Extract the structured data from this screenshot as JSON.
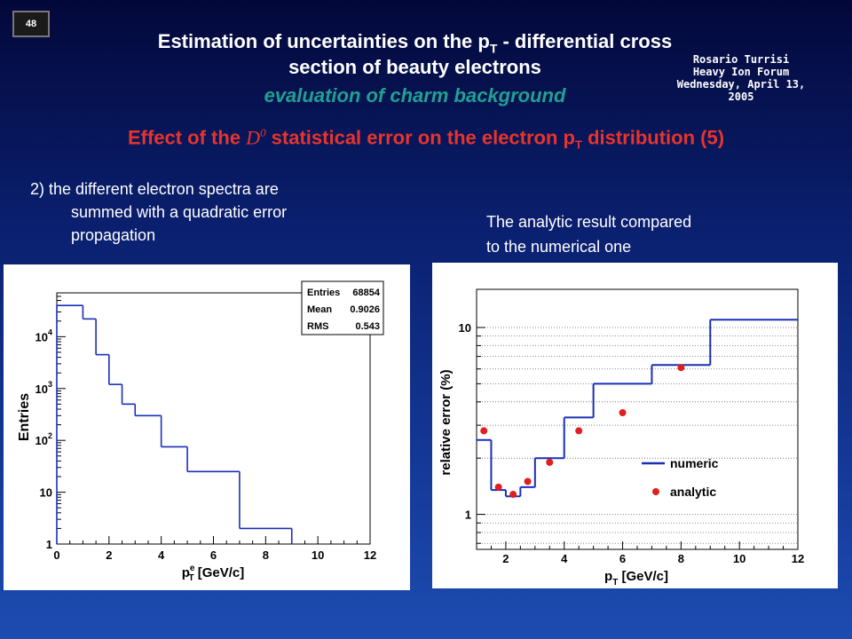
{
  "slide_number": "48",
  "title": {
    "line1_main": "Estimation of uncertainties on the p",
    "line1_sub": "T",
    "line1_rest": " - differential cross",
    "line2": "section of beauty electrons",
    "subtitle": "evaluation of charm background"
  },
  "speaker": {
    "name": "Rosario Turrisi",
    "event": "Heavy Ion Forum",
    "date": "Wednesday, April 13, 2005"
  },
  "heading": {
    "pre": "Effect of the ",
    "symbol": "D",
    "symbol_sup": "0",
    "mid": " statistical error on the electron p",
    "sub": "T",
    "post": " distribution (5)"
  },
  "left_text": {
    "line1": "2) the different electron spectra are",
    "line2": "summed with a quadratic error",
    "line3": "propagation"
  },
  "right_text": {
    "line1": "The analytic result compared",
    "line2": "to the numerical one"
  },
  "chart_data": [
    {
      "type": "histogram",
      "ylabel": "Entries",
      "xlabel_main": "p",
      "xlabel_sup": "e",
      "xlabel_sub": "T",
      "xlabel_unit": " [GeV/c]",
      "xlim": [
        0,
        12
      ],
      "ylim": [
        1,
        70000
      ],
      "log_y": true,
      "x_ticks": [
        "0",
        "2",
        "4",
        "6",
        "8",
        "10",
        "12"
      ],
      "y_ticks": [
        {
          "base": "1",
          "exp": ""
        },
        {
          "base": "10",
          "exp": ""
        },
        {
          "base": "10",
          "exp": "2"
        },
        {
          "base": "10",
          "exp": "3"
        },
        {
          "base": "10",
          "exp": "4"
        }
      ],
      "bins": [
        {
          "lo": 0,
          "hi": 1,
          "value": 40000
        },
        {
          "lo": 1,
          "hi": 1.5,
          "value": 22000
        },
        {
          "lo": 1.5,
          "hi": 2,
          "value": 4500
        },
        {
          "lo": 2,
          "hi": 2.5,
          "value": 1200
        },
        {
          "lo": 2.5,
          "hi": 3,
          "value": 500
        },
        {
          "lo": 3,
          "hi": 4,
          "value": 300
        },
        {
          "lo": 4,
          "hi": 5,
          "value": 75
        },
        {
          "lo": 5,
          "hi": 7,
          "value": 25
        },
        {
          "lo": 7,
          "hi": 9,
          "value": 2
        },
        {
          "lo": 9,
          "hi": 12,
          "value": 0
        }
      ],
      "stats": [
        {
          "label": "Entries",
          "value": "68854"
        },
        {
          "label": "Mean",
          "value": "0.9026"
        },
        {
          "label": "RMS",
          "value": "0.543"
        }
      ],
      "color": "#1a2fb8"
    },
    {
      "type": "line",
      "ylabel": "relative error (%)",
      "xlabel_main": "p",
      "xlabel_sub": "T",
      "xlabel_unit": " [GeV/c]",
      "xlim": [
        1,
        12
      ],
      "ylim": [
        0.65,
        16
      ],
      "log_y": true,
      "grid": true,
      "x_ticks": [
        "2",
        "4",
        "6",
        "8",
        "10",
        "12"
      ],
      "y_ticks": [
        "1",
        "10"
      ],
      "series": [
        {
          "name": "numeric",
          "style": "step",
          "color": "#1a2fb8",
          "steps": [
            {
              "lo": 1,
              "hi": 1.5,
              "value": 2.5
            },
            {
              "lo": 1.5,
              "hi": 2,
              "value": 1.35
            },
            {
              "lo": 2,
              "hi": 2.5,
              "value": 1.25
            },
            {
              "lo": 2.5,
              "hi": 3,
              "value": 1.4
            },
            {
              "lo": 3,
              "hi": 4,
              "value": 2.0
            },
            {
              "lo": 4,
              "hi": 5,
              "value": 3.3
            },
            {
              "lo": 5,
              "hi": 7,
              "value": 5.0
            },
            {
              "lo": 7,
              "hi": 9,
              "value": 6.3
            },
            {
              "lo": 9,
              "hi": 12,
              "value": 11.0
            }
          ]
        },
        {
          "name": "analytic",
          "style": "markers",
          "color": "#e02020",
          "points": [
            {
              "x": 1.25,
              "y": 2.8
            },
            {
              "x": 1.75,
              "y": 1.4
            },
            {
              "x": 2.25,
              "y": 1.28
            },
            {
              "x": 2.75,
              "y": 1.5
            },
            {
              "x": 3.5,
              "y": 1.9
            },
            {
              "x": 4.5,
              "y": 2.8
            },
            {
              "x": 6.0,
              "y": 3.5
            },
            {
              "x": 8.0,
              "y": 6.1
            }
          ]
        }
      ]
    }
  ]
}
